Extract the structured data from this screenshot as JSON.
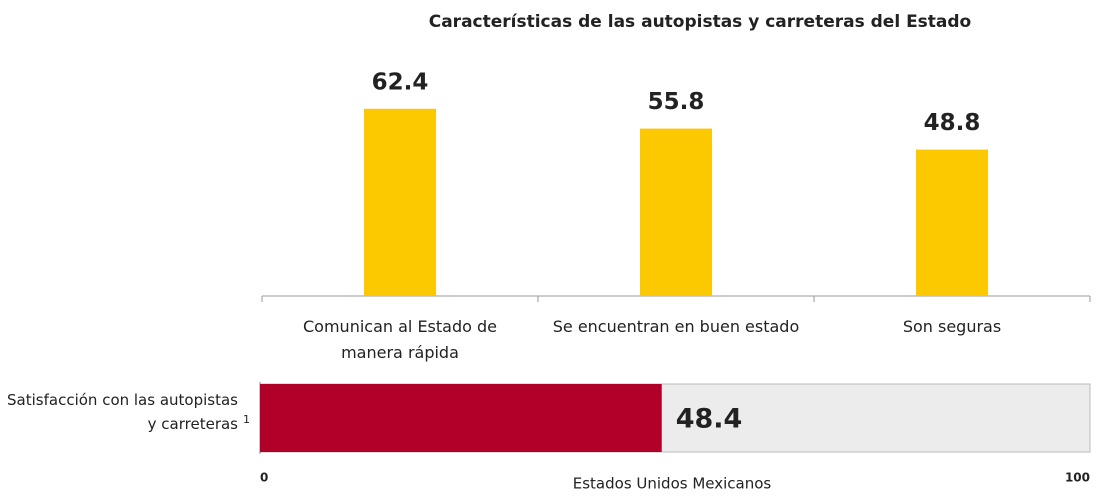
{
  "chart_data": [
    {
      "type": "bar",
      "title": "Características de las autopistas y carreteras del Estado",
      "categories": [
        "Comunican al Estado de manera rápida",
        "Se encuentran en buen estado",
        "Son seguras"
      ],
      "values": [
        62.4,
        55.8,
        48.8
      ],
      "color": "#fcc800"
    },
    {
      "type": "hbar",
      "categories": [
        "Satisfacción con las autopistas y carreteras"
      ],
      "footnote_marker": "1",
      "values": [
        48.4
      ],
      "color": "#b0002a",
      "background_color": "#ececec",
      "xlabel": "Estados Unidos Mexicanos",
      "xlim": [
        0,
        100
      ],
      "xticks": [
        0,
        100
      ]
    }
  ]
}
